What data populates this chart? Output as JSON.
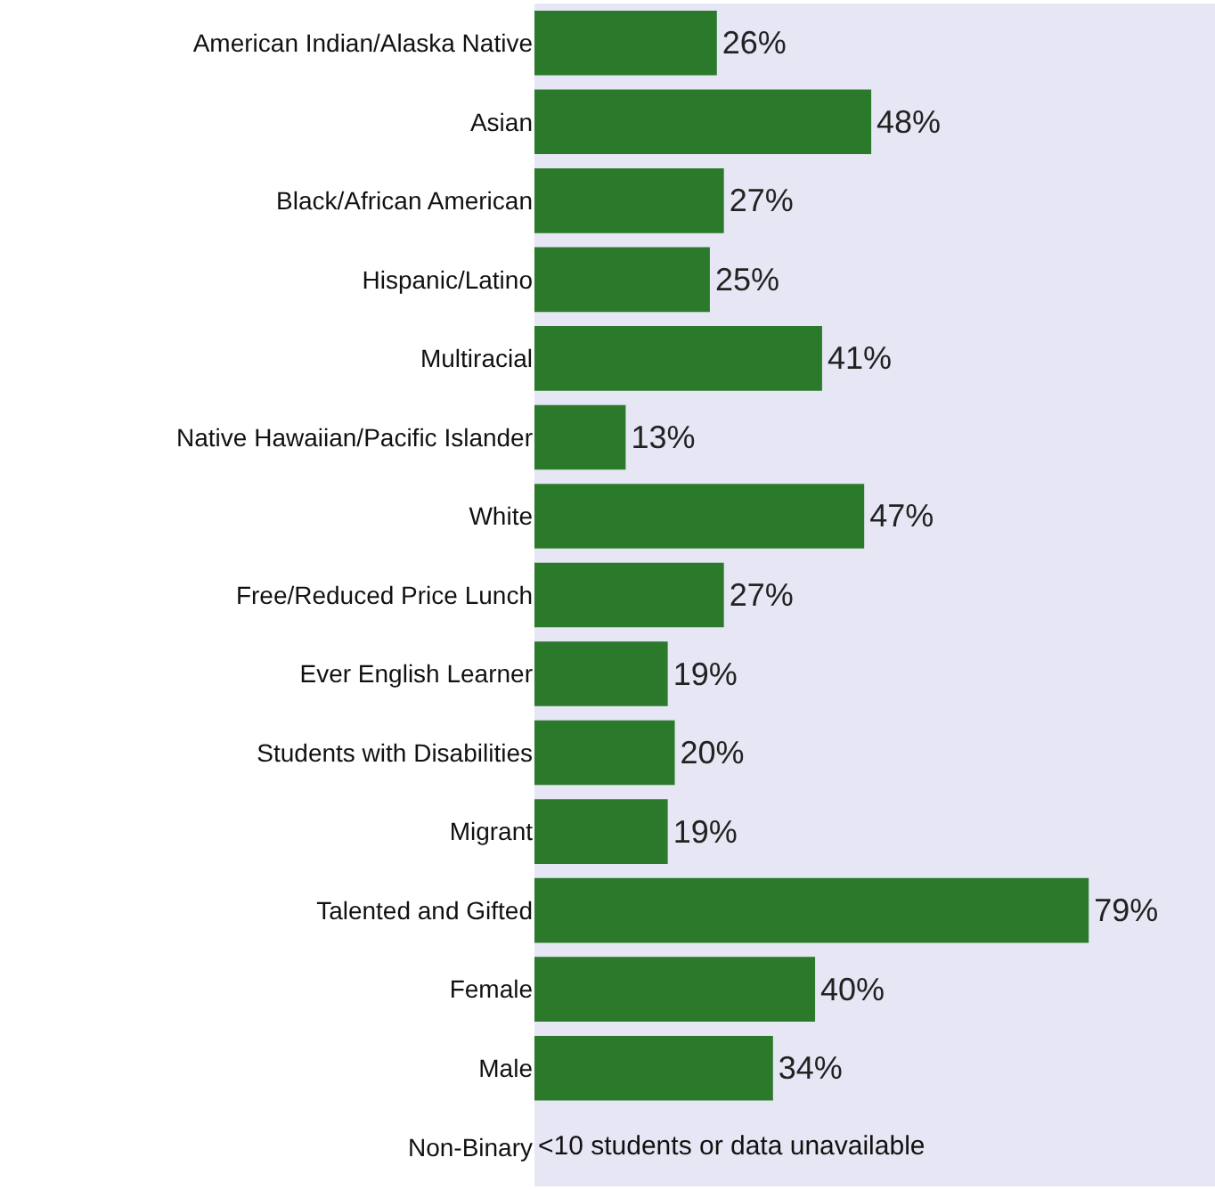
{
  "chart_data": {
    "type": "bar",
    "orientation": "horizontal",
    "categories": [
      "American Indian/Alaska Native",
      "Asian",
      "Black/African American",
      "Hispanic/Latino",
      "Multiracial",
      "Native Hawaiian/Pacific Islander",
      "White",
      "Free/Reduced Price Lunch",
      "Ever English Learner",
      "Students with Disabilities",
      "Migrant",
      "Talented and Gifted",
      "Female",
      "Male",
      "Non-Binary"
    ],
    "values": [
      26,
      48,
      27,
      25,
      41,
      13,
      47,
      27,
      19,
      20,
      19,
      79,
      40,
      34,
      null
    ],
    "value_labels": [
      "26%",
      "48%",
      "27%",
      "25%",
      "41%",
      "13%",
      "47%",
      "27%",
      "19%",
      "20%",
      "19%",
      "79%",
      "40%",
      "34%",
      null
    ],
    "color": "#2b7a2b",
    "xlim": [
      0,
      97
    ],
    "tick_labels": "y",
    "grid": false,
    "legend": false,
    "annotations": [
      "<10 students or data unavailable"
    ]
  }
}
